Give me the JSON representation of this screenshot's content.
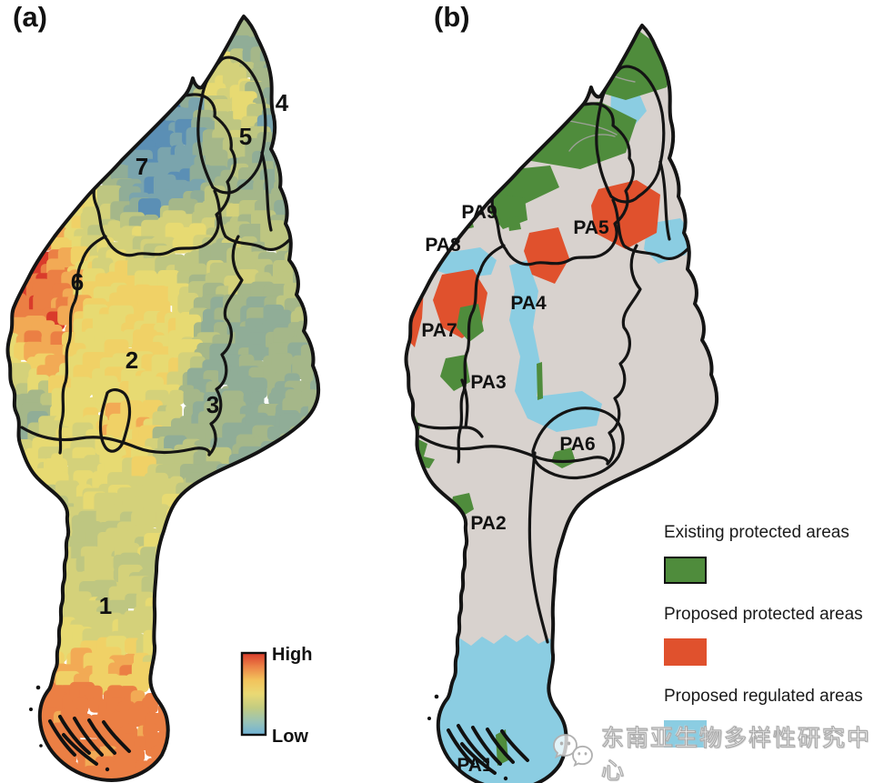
{
  "figure": {
    "panel_a_tag": "(a)",
    "panel_b_tag": "(b)",
    "background_color": "#ffffff"
  },
  "panel_a": {
    "name": "conservation-priority-choropleth",
    "region_labels": [
      "1",
      "2",
      "3",
      "4",
      "5",
      "6",
      "7"
    ],
    "legend": {
      "high_label": "High",
      "low_label": "Low",
      "gradient_top_to_bottom": [
        "#d93b2b",
        "#ec8347",
        "#f2c35c",
        "#ead974",
        "#c3cc81",
        "#9bc4b4",
        "#6fb3d8"
      ]
    },
    "mosaic_palette_low_to_high": [
      "#3f74a8",
      "#5b8fb5",
      "#7aa4ad",
      "#90ad97",
      "#a5b789",
      "#bec681",
      "#d4d17a",
      "#e7da72",
      "#f0d166",
      "#f2aa55",
      "#eb7f44",
      "#d93b2b"
    ]
  },
  "panel_b": {
    "name": "protected-areas-map",
    "base_color": "#d8d2ce",
    "boundary_color": "#141414",
    "pa_labels": [
      "PA1",
      "PA2",
      "PA3",
      "PA4",
      "PA5",
      "PA6",
      "PA7",
      "PA8",
      "PA9"
    ],
    "legend": {
      "items": [
        {
          "label": "Existing protected areas",
          "color": "#4f8c3c"
        },
        {
          "label": "Proposed protected areas",
          "color": "#e0512d"
        },
        {
          "label": "Proposed regulated areas",
          "color": "#8bcde2"
        }
      ]
    }
  },
  "watermark": {
    "text": "东南亚生物多样性研究中心",
    "icon": "wechat-logo"
  }
}
